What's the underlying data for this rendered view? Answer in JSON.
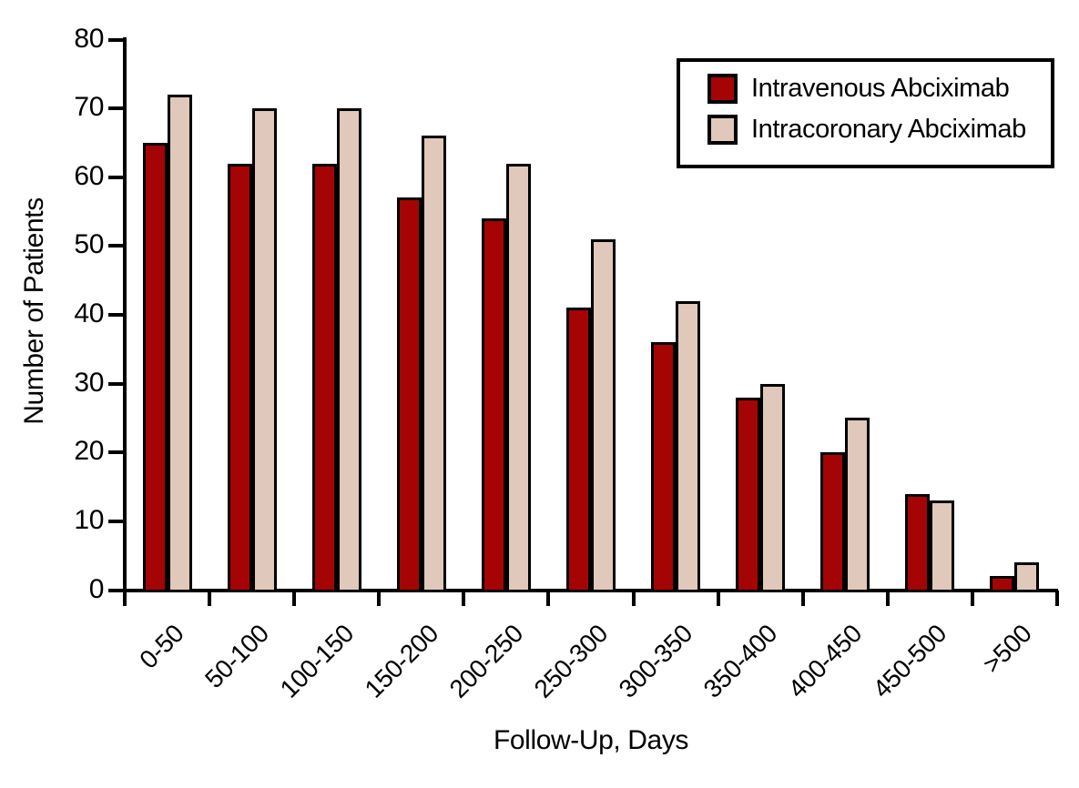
{
  "chart_data": {
    "type": "bar",
    "title": "",
    "xlabel": "Follow-Up, Days",
    "ylabel": "Number of Patients",
    "categories": [
      "0-50",
      "50-100",
      "100-150",
      "150-200",
      "200-250",
      "250-300",
      "300-350",
      "350-400",
      "400-450",
      "450-500",
      ">500"
    ],
    "series": [
      {
        "name": "Intravenous Abciximab",
        "color": "#A40404",
        "values": [
          65,
          62,
          62,
          57,
          54,
          41,
          36,
          28,
          20,
          14,
          2
        ]
      },
      {
        "name": "Intracoronary Abciximab",
        "color": "#E0C8BA",
        "values": [
          72,
          70,
          70,
          66,
          62,
          51,
          42,
          30,
          25,
          13,
          4
        ]
      }
    ],
    "y_ticks": [
      0,
      10,
      20,
      30,
      40,
      50,
      60,
      70,
      80
    ],
    "ylim": [
      0,
      80
    ],
    "grid": false,
    "legend_position": "top-right",
    "bar_border_color": "#000000",
    "axis_color": "#000000",
    "background_color": "#FFFFFF"
  }
}
